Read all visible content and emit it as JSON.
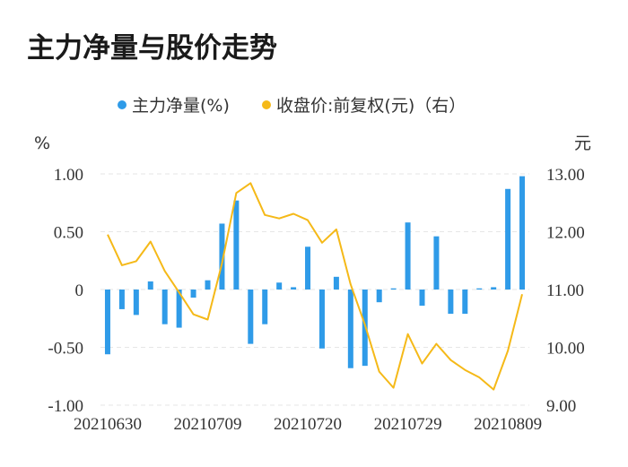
{
  "page_title": "主力净量与股价走势",
  "chart_data": {
    "type": "bar+line",
    "title": "主力净量与股价走势",
    "legend": [
      {
        "name": "主力净量(%)",
        "color": "#2f9be8",
        "marker": "circle"
      },
      {
        "name": "收盘价:前复权(元)（右）",
        "color": "#f5b918",
        "marker": "circle"
      }
    ],
    "legend_position": "top",
    "left_axis": {
      "unit": "%",
      "range": [
        -1.0,
        1.0
      ],
      "ticks": [
        1.0,
        0.5,
        0,
        -0.5,
        -1.0
      ],
      "tick_labels": [
        "1.00",
        "0.50",
        "0",
        "-0.50",
        "-1.00"
      ]
    },
    "right_axis": {
      "unit": "元",
      "range": [
        9.0,
        13.0
      ],
      "ticks": [
        13.0,
        12.0,
        11.0,
        10.0,
        9.0
      ],
      "tick_labels": [
        "13.00",
        "12.00",
        "11.00",
        "10.00",
        "9.00"
      ]
    },
    "grid": true,
    "x_tick_labels": [
      {
        "index": 0,
        "label": "20210630"
      },
      {
        "index": 7,
        "label": "20210709"
      },
      {
        "index": 14,
        "label": "20210720"
      },
      {
        "index": 21,
        "label": "20210729"
      },
      {
        "index": 28,
        "label": "20210809"
      }
    ],
    "series": [
      {
        "name": "主力净量(%)",
        "type": "bar",
        "axis": "left",
        "color": "#2f9be8",
        "values": [
          -0.56,
          -0.17,
          -0.22,
          0.07,
          -0.3,
          -0.33,
          -0.07,
          0.08,
          0.57,
          0.77,
          -0.47,
          -0.3,
          0.06,
          0.02,
          0.37,
          -0.51,
          0.11,
          -0.68,
          -0.66,
          -0.11,
          0.01,
          0.58,
          -0.14,
          0.46,
          -0.21,
          -0.21,
          0.01,
          0.02,
          0.87,
          0.98
        ]
      },
      {
        "name": "收盘价:前复权(元)（右）",
        "type": "line",
        "axis": "right",
        "color": "#f5b918",
        "values": [
          11.95,
          11.42,
          11.49,
          11.83,
          11.32,
          10.95,
          10.57,
          10.48,
          11.45,
          12.67,
          12.84,
          12.29,
          12.23,
          12.31,
          12.2,
          11.81,
          12.04,
          11.09,
          10.39,
          9.58,
          9.3,
          10.23,
          9.72,
          10.06,
          9.78,
          9.61,
          9.48,
          9.27,
          9.94,
          10.92
        ]
      }
    ]
  }
}
